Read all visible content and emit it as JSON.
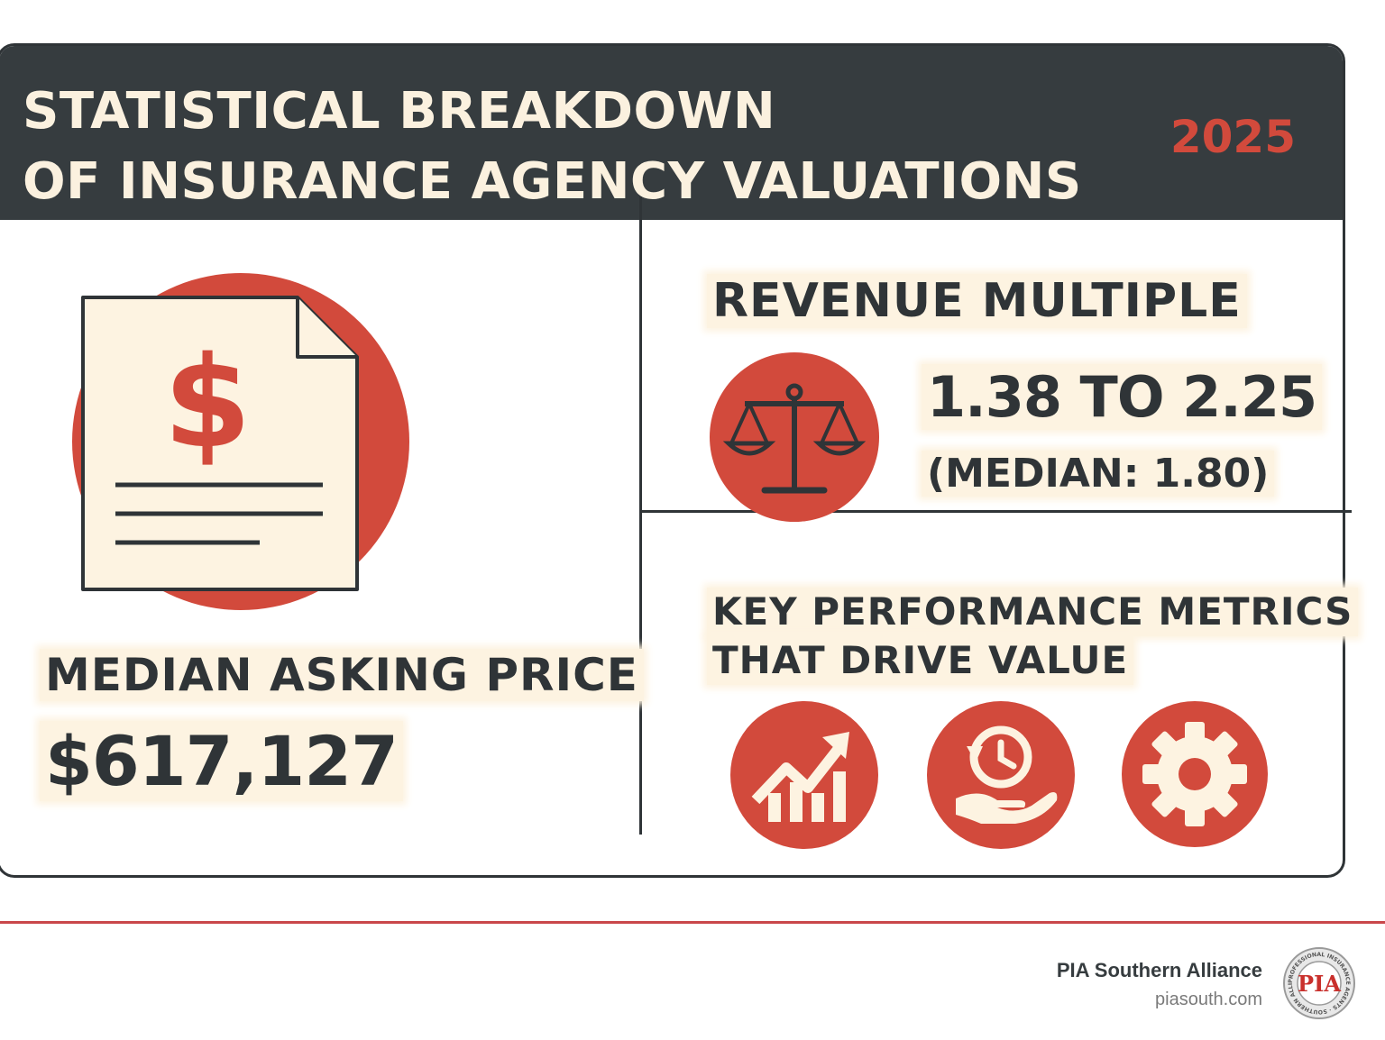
{
  "header": {
    "title": "STATISTICAL BREAKDOWN\nOF INSURANCE AGENCY VALUATIONS",
    "year": "2025"
  },
  "median_asking_price": {
    "label": "MEDIAN ASKING PRICE",
    "value": "$617,127",
    "icon": "dollar-document-icon"
  },
  "revenue_multiple": {
    "label": "REVENUE MULTIPLE",
    "range": "1.38 TO 2.25",
    "median": "(MEDIAN: 1.80)",
    "icon": "balance-scale-icon"
  },
  "key_metrics": {
    "label_line1": "KEY PERFORMANCE METRICS",
    "label_line2": "THAT DRIVE VALUE",
    "icons": [
      "growth-chart-icon",
      "time-hand-icon",
      "gear-icon"
    ]
  },
  "footer": {
    "brand": "PIA Southern Alliance",
    "url": "piasouth.com",
    "logo_ring_text": "PROFESSIONAL INSURANCE AGENTS · SOUTHERN ALLIANCE",
    "logo_text": "PIA"
  },
  "colors": {
    "accent_red": "#d24a3c",
    "dark": "#363c3f",
    "cream": "#fdf3e1"
  }
}
